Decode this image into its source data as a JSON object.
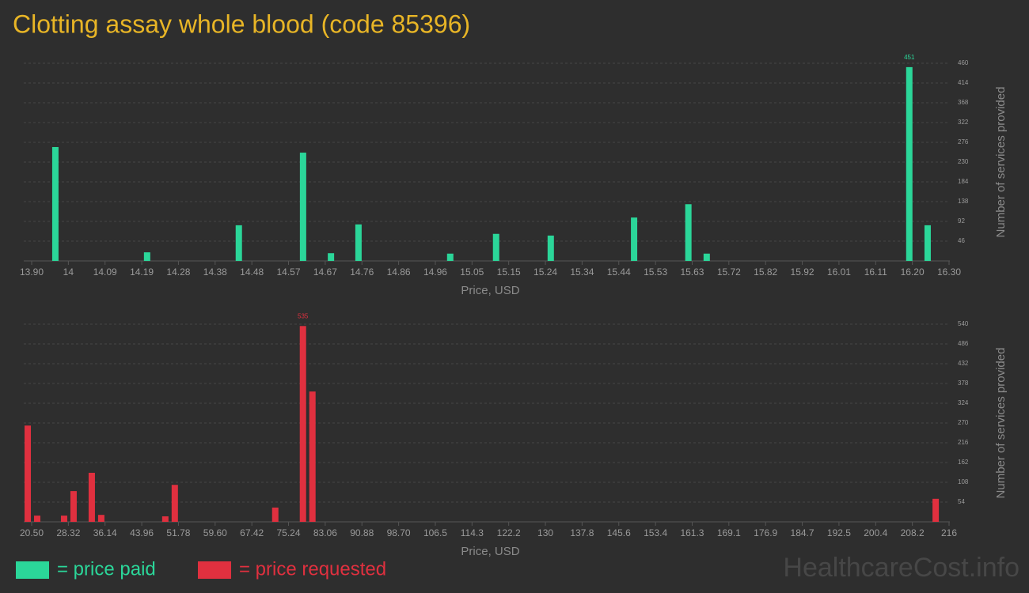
{
  "title": "Clotting assay whole blood (code 85396)",
  "watermark": "HealthcareCost.info",
  "chart_data": [
    {
      "type": "bar",
      "x": [
        13.962,
        14.202,
        14.442,
        14.61,
        14.683,
        14.755,
        14.995,
        15.115,
        15.258,
        15.476,
        15.618,
        15.666,
        16.196,
        16.244
      ],
      "series": [
        {
          "name": "= price paid",
          "color": "#2bd699",
          "values": [
            265,
            20,
            83,
            252,
            18,
            85,
            17,
            63,
            59,
            101,
            132,
            17,
            451,
            83
          ]
        }
      ],
      "xlim": [
        13.9,
        16.3
      ],
      "xticks": [
        {
          "value": 13.9,
          "label": "13.90"
        },
        {
          "value": 13.996,
          "label": "14"
        },
        {
          "value": 14.092,
          "label": "14.09"
        },
        {
          "value": 14.188,
          "label": "14.19"
        },
        {
          "value": 14.284,
          "label": "14.28"
        },
        14.38,
        {
          "value": 14.476,
          "label": "14.48"
        },
        {
          "value": 14.572,
          "label": "14.57"
        },
        {
          "value": 14.668,
          "label": "14.67"
        },
        {
          "value": 14.764,
          "label": "14.76"
        },
        14.86,
        {
          "value": 14.956,
          "label": "14.96"
        },
        {
          "value": 15.052,
          "label": "15.05"
        },
        {
          "value": 15.148,
          "label": "15.15"
        },
        {
          "value": 15.244,
          "label": "15.24"
        },
        15.34,
        {
          "value": 15.436,
          "label": "15.44"
        },
        {
          "value": 15.532,
          "label": "15.53"
        },
        {
          "value": 15.628,
          "label": "15.63"
        },
        {
          "value": 15.724,
          "label": "15.72"
        },
        15.82,
        {
          "value": 15.916,
          "label": "15.92"
        },
        {
          "value": 16.012,
          "label": "16.01"
        },
        {
          "value": 16.108,
          "label": "16.11"
        },
        {
          "value": 16.204,
          "label": "16.20"
        },
        {
          "value": 16.3,
          "label": "16.30"
        }
      ],
      "ylim": [
        0,
        460
      ],
      "yticks": [
        46,
        92,
        138,
        184,
        230,
        276,
        322,
        368,
        414,
        460
      ],
      "x_label": "Price, USD",
      "y_label": "Number of services provided",
      "grid": true
    },
    {
      "type": "bar",
      "x": [
        19.66,
        21.68,
        27.41,
        29.43,
        33.31,
        35.33,
        48.98,
        51.0,
        72.41,
        78.31,
        80.33,
        213.15
      ],
      "series": [
        {
          "name": "= price requested",
          "color": "#e0303f",
          "values": [
            263,
            17,
            17,
            84,
            134,
            19,
            15,
            101,
            39,
            535,
            356,
            63
          ]
        }
      ],
      "xlim": [
        20.5,
        216
      ],
      "xticks": [
        {
          "value": 20.5,
          "label": "20.50"
        },
        28.32,
        36.14,
        43.96,
        51.78,
        {
          "value": 59.6,
          "label": "59.60"
        },
        67.42,
        75.24,
        83.06,
        90.88,
        {
          "value": 98.7,
          "label": "98.70"
        },
        {
          "value": 106.52,
          "label": "106.5"
        },
        {
          "value": 114.34,
          "label": "114.3"
        },
        {
          "value": 122.16,
          "label": "122.2"
        },
        {
          "value": 129.98,
          "label": "130"
        },
        137.8,
        {
          "value": 145.62,
          "label": "145.6"
        },
        {
          "value": 153.44,
          "label": "153.4"
        },
        {
          "value": 161.26,
          "label": "161.3"
        },
        {
          "value": 169.08,
          "label": "169.1"
        },
        176.9,
        {
          "value": 184.72,
          "label": "184.7"
        },
        {
          "value": 192.54,
          "label": "192.5"
        },
        {
          "value": 200.36,
          "label": "200.4"
        },
        {
          "value": 208.18,
          "label": "208.2"
        },
        216
      ],
      "ylim": [
        0,
        540
      ],
      "yticks": [
        54,
        108,
        162,
        216,
        270,
        324,
        378,
        432,
        486,
        540
      ],
      "x_label": "Price, USD",
      "y_label": "Number of services provided",
      "grid": true
    }
  ]
}
